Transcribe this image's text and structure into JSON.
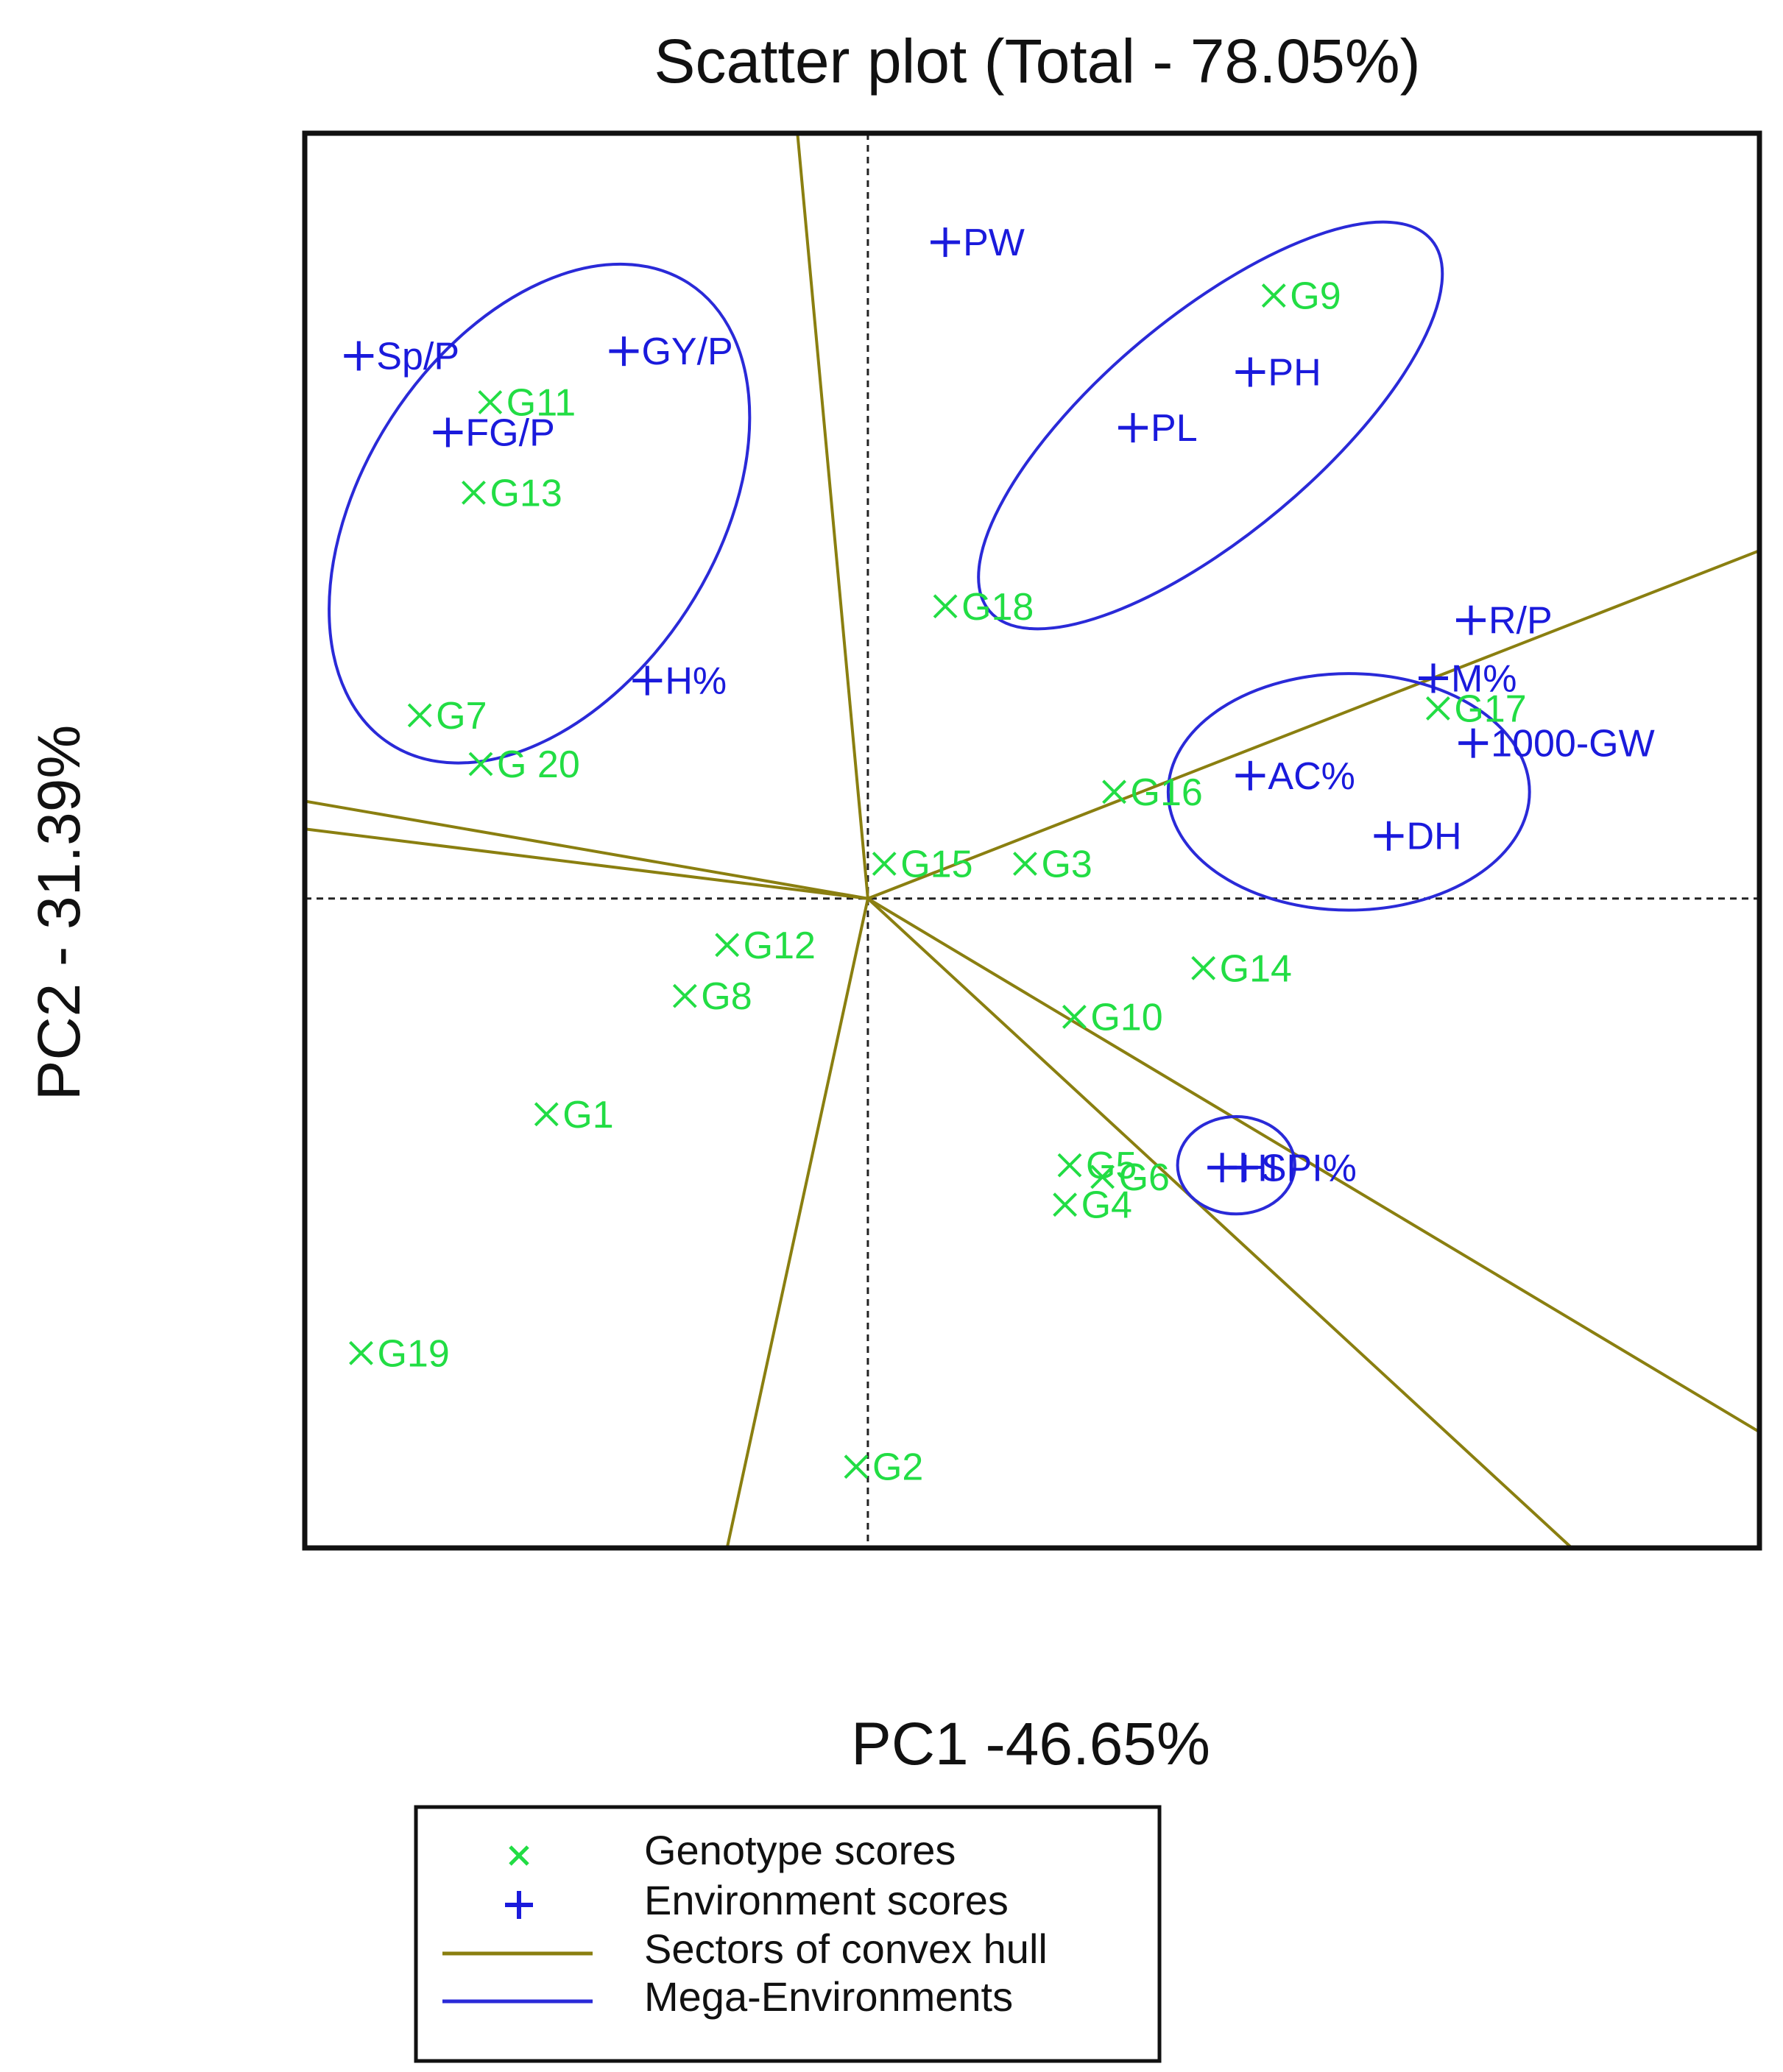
{
  "chart_data": {
    "type": "scatter",
    "title": "Scatter plot (Total - 78.05%)",
    "xlabel": "PC1 -46.65%",
    "ylabel": "PC2 - 31.39%",
    "colors": {
      "genotype": "#22dd44",
      "environment": "#1a1adc",
      "sector": "#8a7f10",
      "mega": "#2a2ad8",
      "frame": "#111111"
    },
    "series": [
      {
        "name": "Genotype scores",
        "marker": "x",
        "labels": [
          "G1",
          "G2",
          "G3",
          "G4",
          "G5",
          "G6",
          "G7",
          "G8",
          "G9",
          "G10",
          "G11",
          "G12",
          "G13",
          "G14",
          "G15",
          "G16",
          "G17",
          "G18",
          "G19",
          "G 20"
        ],
        "x": [
          -1.37,
          -0.05,
          0.67,
          0.84,
          0.86,
          1.0,
          -1.91,
          -0.78,
          1.73,
          0.88,
          -1.61,
          -0.6,
          -1.68,
          1.43,
          0.07,
          1.05,
          2.43,
          0.33,
          -2.16,
          -1.65
        ],
        "y": [
          -0.93,
          -2.45,
          0.15,
          -1.32,
          -1.15,
          -1.2,
          0.79,
          -0.42,
          2.6,
          -0.51,
          2.14,
          -0.2,
          1.75,
          -0.3,
          0.15,
          0.46,
          0.82,
          1.26,
          -1.96,
          0.58
        ]
      },
      {
        "name": "Environment scores",
        "marker": "+",
        "labels": [
          "PW",
          "Sp/P",
          "GY/P",
          "FG/P",
          "PL",
          "PH",
          "H%",
          "R/P",
          "M%",
          "1000-GW",
          "AC%",
          "DH",
          "HI",
          "SPI%"
        ],
        "x": [
          0.33,
          -2.17,
          -1.04,
          -1.79,
          1.13,
          1.63,
          -0.94,
          2.57,
          2.41,
          2.58,
          1.63,
          2.22,
          1.51,
          1.6
        ],
        "y": [
          2.83,
          2.34,
          2.36,
          2.01,
          2.03,
          2.27,
          0.94,
          1.2,
          0.95,
          0.67,
          0.53,
          0.27,
          -1.16,
          -1.16
        ]
      }
    ],
    "xlim": [
      -2.4,
      3.8
    ],
    "ylim": [
      -2.8,
      3.3
    ],
    "reference_lines": {
      "x": 0,
      "y": 0,
      "style": "dashed"
    },
    "sector_rays": [
      {
        "x": -0.3,
        "y": 3.3
      },
      {
        "x": -2.4,
        "y": 0.42
      },
      {
        "x": -2.4,
        "y": 0.3
      },
      {
        "x": 3.8,
        "y": 1.5
      },
      {
        "x": 3.8,
        "y": -2.3
      },
      {
        "x": 3.0,
        "y": -2.8
      },
      {
        "x": -0.6,
        "y": -2.8
      }
    ],
    "mega_environments": [
      {
        "cx": -1.4,
        "cy": 1.66,
        "rx": 1.17,
        "ry": 0.76,
        "angle": 57
      },
      {
        "cx": 1.46,
        "cy": 2.04,
        "rx": 1.23,
        "ry": 0.47,
        "angle": 40
      },
      {
        "cx": 2.05,
        "cy": 0.46,
        "rx": 0.77,
        "ry": 0.51,
        "angle": 0
      },
      {
        "cx": 1.57,
        "cy": -1.15,
        "rx": 0.25,
        "ry": 0.21,
        "angle": 0
      }
    ],
    "grid": false,
    "legend": {
      "position": "bottom",
      "entries": [
        "Genotype scores",
        "Environment scores",
        "Sectors of convex hull",
        "Mega-Environments"
      ]
    }
  }
}
